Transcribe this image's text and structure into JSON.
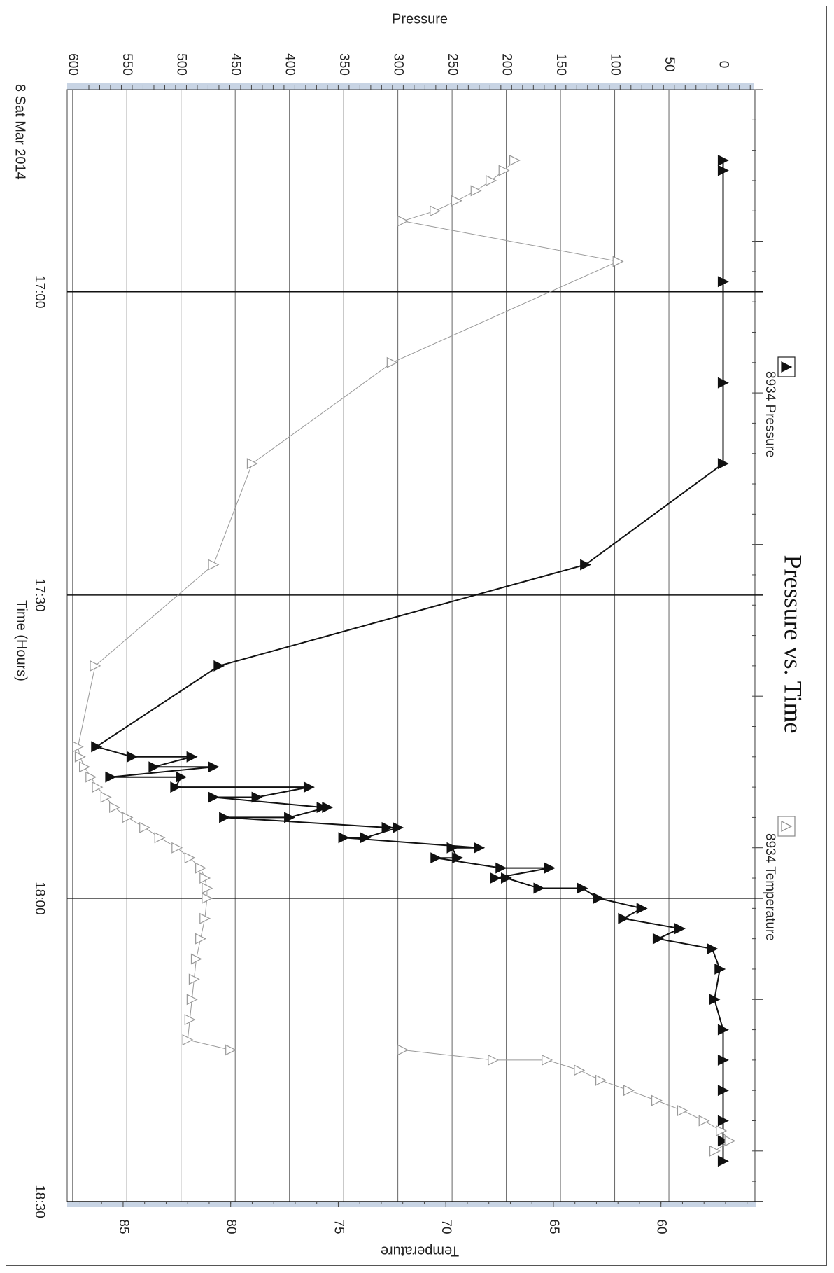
{
  "chart_data": {
    "type": "line",
    "title": "Pressure vs. Time",
    "date_label": "8 Sat Mar 2014",
    "xlabel": "Time (Hours)",
    "ylabel_left": "Pressure",
    "ylabel_right": "Temperature",
    "x_ticks": [
      "17:00",
      "17:30",
      "18:00",
      "18:30"
    ],
    "x_range": [
      "16:40",
      "18:30"
    ],
    "pressure_ticks": [
      0,
      50,
      100,
      150,
      200,
      250,
      300,
      350,
      400,
      450,
      500,
      550,
      600
    ],
    "pressure_range": [
      -30,
      605
    ],
    "temperature_ticks": [
      60,
      65,
      70,
      75,
      80,
      85
    ],
    "temperature_range": [
      55.6,
      87.6
    ],
    "grid": true,
    "legend": [
      {
        "name": "8934 Pressure",
        "marker": "filled-triangle",
        "position": "top-left"
      },
      {
        "name": "8934 Temperature",
        "marker": "hollow-triangle",
        "position": "top-right"
      }
    ],
    "series": [
      {
        "name": "8934 Pressure",
        "axis": "Pressure",
        "color": "#111111",
        "marker": "filled",
        "x": [
          "16:47",
          "16:48",
          "16:59",
          "17:09",
          "17:17",
          "17:27",
          "17:37",
          "17:45",
          "17:46",
          "17:46",
          "17:47",
          "17:47",
          "17:48",
          "17:48",
          "17:49",
          "17:49",
          "17:50",
          "17:50",
          "17:51",
          "17:51",
          "17:52",
          "17:52",
          "17:53",
          "17:53",
          "17:54",
          "17:54",
          "17:55",
          "17:55",
          "17:56",
          "17:56",
          "17:57",
          "17:57",
          "17:58",
          "17:58",
          "17:59",
          "17:59",
          "18:00",
          "18:01",
          "18:02",
          "18:03",
          "18:04",
          "18:05",
          "18:07",
          "18:10",
          "18:13",
          "18:16",
          "18:19",
          "18:22",
          "18:24",
          "18:26"
        ],
        "y": [
          0,
          0,
          0,
          0,
          0,
          127,
          465,
          578,
          545,
          490,
          525,
          470,
          565,
          500,
          505,
          382,
          430,
          470,
          370,
          365,
          400,
          460,
          310,
          300,
          330,
          350,
          225,
          250,
          245,
          265,
          205,
          160,
          210,
          200,
          170,
          130,
          115,
          75,
          92,
          40,
          60,
          10,
          3,
          8,
          0,
          0,
          0,
          0,
          0,
          0
        ]
      },
      {
        "name": "8934 Temperature",
        "axis": "Temperature",
        "color": "#999999",
        "marker": "hollow",
        "x": [
          "16:47",
          "16:48",
          "16:49",
          "16:50",
          "16:51",
          "16:52",
          "16:53",
          "16:57",
          "17:07",
          "17:17",
          "17:27",
          "17:37",
          "17:45",
          "17:46",
          "17:47",
          "17:48",
          "17:49",
          "17:50",
          "17:51",
          "17:52",
          "17:53",
          "17:54",
          "17:55",
          "17:56",
          "17:57",
          "17:58",
          "17:59",
          "18:00",
          "18:02",
          "18:04",
          "18:06",
          "18:08",
          "18:10",
          "18:12",
          "18:14",
          "18:15",
          "18:15",
          "18:16",
          "18:16",
          "18:17",
          "18:18",
          "18:19",
          "18:20",
          "18:21",
          "18:22",
          "18:23",
          "18:24",
          "18:25"
        ],
        "y": [
          66.8,
          67.3,
          67.9,
          68.6,
          69.5,
          70.5,
          72.0,
          62.0,
          72.5,
          79.0,
          80.8,
          86.3,
          87.1,
          87.0,
          86.8,
          86.5,
          86.2,
          85.8,
          85.4,
          84.8,
          84.0,
          83.3,
          82.5,
          81.9,
          81.4,
          81.2,
          81.1,
          81.1,
          81.2,
          81.4,
          81.6,
          81.7,
          81.8,
          81.9,
          82.0,
          80.0,
          72.0,
          67.8,
          65.3,
          63.8,
          62.8,
          61.5,
          60.2,
          59.0,
          58.0,
          57.2,
          56.8,
          57.5
        ]
      }
    ]
  }
}
